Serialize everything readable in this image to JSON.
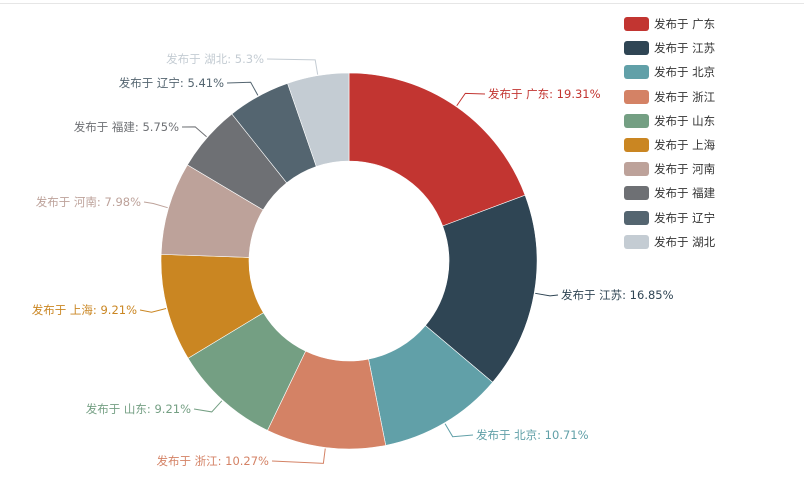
{
  "chart_data": {
    "type": "pie",
    "variant": "doughnut",
    "title": "",
    "legend_position": "top-right",
    "label_format": "{name}: {percent}%",
    "categories": [
      "发布于 广东",
      "发布于 江苏",
      "发布于 北京",
      "发布于 浙江",
      "发布于 山东",
      "发布于 上海",
      "发布于 河南",
      "发布于 福建",
      "发布于 辽宁",
      "发布于 湖北"
    ],
    "values": [
      19.31,
      16.85,
      10.71,
      10.27,
      9.21,
      9.21,
      7.98,
      5.75,
      5.41,
      5.3
    ],
    "labels": [
      "发布于 广东: 19.31%",
      "发布于 江苏: 16.85%",
      "发布于 北京: 10.71%",
      "发布于 浙江: 10.27%",
      "发布于 山东: 9.21%",
      "发布于 上海: 9.21%",
      "发布于 河南: 7.98%",
      "发布于 福建: 5.75%",
      "发布于 辽宁: 5.41%",
      "发布于 湖北: 5.3%"
    ],
    "colors": [
      "#c23531",
      "#2f4554",
      "#61a0a8",
      "#d48265",
      "#749f83",
      "#ca8622",
      "#bda29a",
      "#6e7074",
      "#546570",
      "#c4ccd3"
    ]
  }
}
